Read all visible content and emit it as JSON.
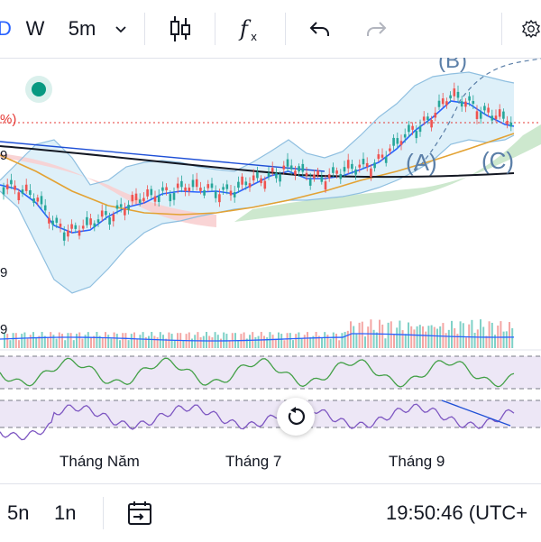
{
  "toolbar": {
    "left_cut_char": "D",
    "interval_w": "W",
    "interval_5m": "5m",
    "icons": [
      "candles-icon",
      "fx-icon",
      "undo-icon",
      "redo-icon",
      "settings-icon"
    ]
  },
  "price_axis_labels": {
    "pct": "%)",
    "l1": "9",
    "l2": "9",
    "l3": "9"
  },
  "annotations": {
    "wave_b": "(B)",
    "wave_a": "(A)",
    "wave_c": "(C)"
  },
  "x_labels": [
    "Tháng Năm",
    "Tháng 7",
    "Tháng 9"
  ],
  "bottom_bar": {
    "range_5n": "5n",
    "range_1n": "1n",
    "clock": "19:50:46 (UTC+"
  },
  "colors": {
    "up": "#26a69a",
    "down": "#ef5350",
    "bb_fill": "#d6ecf8",
    "cloud_green": "#c8e6c9",
    "cloud_red": "#f8cfd0",
    "osc_band": "#ede7f6",
    "rsi_line": "#43a047",
    "stoch_line": "#7e57c2",
    "ma_blue": "#2962ff",
    "ma_orange": "#e3a233",
    "trend_black": "#131722",
    "live_dot": "#089981"
  }
}
